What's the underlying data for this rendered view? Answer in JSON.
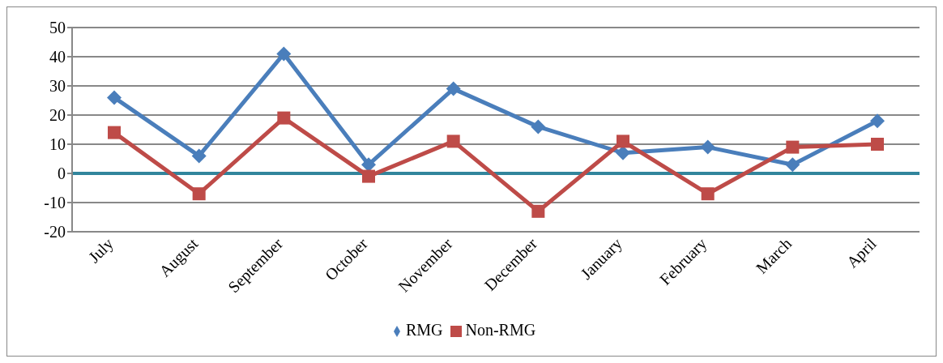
{
  "chart_data": {
    "type": "line",
    "categories": [
      "July",
      "August",
      "September",
      "October",
      "November",
      "December",
      "January",
      "February",
      "March",
      "April"
    ],
    "series": [
      {
        "name": "RMG",
        "color": "#4a7ebb",
        "marker": "diamond",
        "values": [
          26,
          6,
          41,
          3,
          29,
          16,
          7,
          9,
          3,
          18
        ]
      },
      {
        "name": "Non-RMG",
        "color": "#be4b48",
        "marker": "square",
        "values": [
          14,
          -7,
          19,
          -1,
          11,
          -13,
          11,
          -7,
          9,
          10
        ]
      }
    ],
    "ylim": [
      -20,
      50
    ],
    "yticks": [
      -20,
      -10,
      0,
      10,
      20,
      30,
      40,
      50
    ],
    "grid": "y",
    "legend": "bottom",
    "ref_lines": [
      {
        "axis": "y",
        "value": 0,
        "color": "#31859c"
      }
    ]
  }
}
